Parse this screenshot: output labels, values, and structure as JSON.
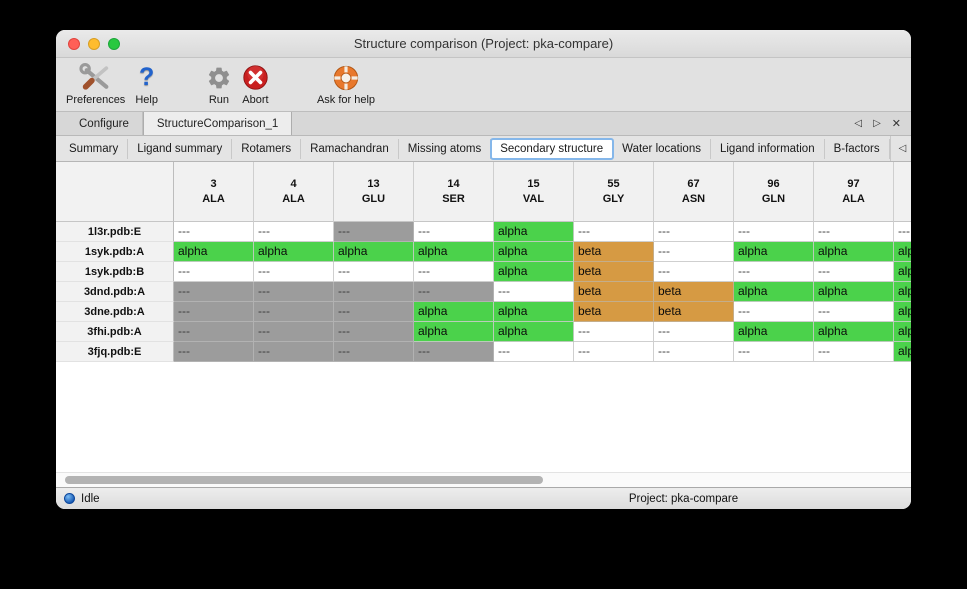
{
  "window": {
    "title": "Structure comparison (Project: pka-compare)"
  },
  "toolbar": {
    "items": [
      {
        "label": "Preferences",
        "icon": "tools-icon"
      },
      {
        "label": "Help",
        "icon": "question-mark-icon"
      },
      {
        "label": "Run",
        "icon": "gear-icon"
      },
      {
        "label": "Abort",
        "icon": "abort-icon"
      },
      {
        "label": "Ask for help",
        "icon": "life-ring-icon"
      }
    ]
  },
  "tabs": {
    "items": [
      {
        "label": "Configure",
        "active": false
      },
      {
        "label": "StructureComparison_1",
        "active": true
      }
    ]
  },
  "subtabs": {
    "items": [
      "Summary",
      "Ligand summary",
      "Rotamers",
      "Ramachandran",
      "Missing atoms",
      "Secondary structure",
      "Water locations",
      "Ligand information",
      "B-factors"
    ],
    "active": "Secondary structure"
  },
  "table": {
    "columns": [
      {
        "number": "3",
        "residue": "ALA"
      },
      {
        "number": "4",
        "residue": "ALA"
      },
      {
        "number": "13",
        "residue": "GLU"
      },
      {
        "number": "14",
        "residue": "SER"
      },
      {
        "number": "15",
        "residue": "VAL"
      },
      {
        "number": "55",
        "residue": "GLY"
      },
      {
        "number": "67",
        "residue": "ASN"
      },
      {
        "number": "96",
        "residue": "GLN"
      },
      {
        "number": "97",
        "residue": "ALA"
      },
      {
        "number": "",
        "residue": ""
      }
    ],
    "rows": [
      {
        "label": "1l3r.pdb:E",
        "cells": [
          {
            "text": "---",
            "style": "plain"
          },
          {
            "text": "---",
            "style": "plain"
          },
          {
            "text": "---",
            "style": "gray"
          },
          {
            "text": "---",
            "style": "plain"
          },
          {
            "text": "alpha",
            "style": "alpha"
          },
          {
            "text": "---",
            "style": "plain"
          },
          {
            "text": "---",
            "style": "plain"
          },
          {
            "text": "---",
            "style": "plain"
          },
          {
            "text": "---",
            "style": "plain"
          },
          {
            "text": "---",
            "style": "plain"
          }
        ]
      },
      {
        "label": "1syk.pdb:A",
        "cells": [
          {
            "text": "alpha",
            "style": "alpha"
          },
          {
            "text": "alpha",
            "style": "alpha"
          },
          {
            "text": "alpha",
            "style": "alpha"
          },
          {
            "text": "alpha",
            "style": "alpha"
          },
          {
            "text": "alpha",
            "style": "alpha"
          },
          {
            "text": "beta",
            "style": "beta"
          },
          {
            "text": "---",
            "style": "plain"
          },
          {
            "text": "alpha",
            "style": "alpha"
          },
          {
            "text": "alpha",
            "style": "alpha"
          },
          {
            "text": "alpha",
            "style": "alpha"
          }
        ]
      },
      {
        "label": "1syk.pdb:B",
        "cells": [
          {
            "text": "---",
            "style": "plain"
          },
          {
            "text": "---",
            "style": "plain"
          },
          {
            "text": "---",
            "style": "plain"
          },
          {
            "text": "---",
            "style": "plain"
          },
          {
            "text": "alpha",
            "style": "alpha"
          },
          {
            "text": "beta",
            "style": "beta"
          },
          {
            "text": "---",
            "style": "plain"
          },
          {
            "text": "---",
            "style": "plain"
          },
          {
            "text": "---",
            "style": "plain"
          },
          {
            "text": "alpha",
            "style": "alpha"
          }
        ]
      },
      {
        "label": "3dnd.pdb:A",
        "cells": [
          {
            "text": "---",
            "style": "gray"
          },
          {
            "text": "---",
            "style": "gray"
          },
          {
            "text": "---",
            "style": "gray"
          },
          {
            "text": "---",
            "style": "gray"
          },
          {
            "text": "---",
            "style": "plain"
          },
          {
            "text": "beta",
            "style": "beta"
          },
          {
            "text": "beta",
            "style": "beta"
          },
          {
            "text": "alpha",
            "style": "alpha"
          },
          {
            "text": "alpha",
            "style": "alpha"
          },
          {
            "text": "alpha",
            "style": "alpha"
          }
        ]
      },
      {
        "label": "3dne.pdb:A",
        "cells": [
          {
            "text": "---",
            "style": "gray"
          },
          {
            "text": "---",
            "style": "gray"
          },
          {
            "text": "---",
            "style": "gray"
          },
          {
            "text": "alpha",
            "style": "alpha"
          },
          {
            "text": "alpha",
            "style": "alpha"
          },
          {
            "text": "beta",
            "style": "beta"
          },
          {
            "text": "beta",
            "style": "beta"
          },
          {
            "text": "---",
            "style": "plain"
          },
          {
            "text": "---",
            "style": "plain"
          },
          {
            "text": "alpha",
            "style": "alpha"
          }
        ]
      },
      {
        "label": "3fhi.pdb:A",
        "cells": [
          {
            "text": "---",
            "style": "gray"
          },
          {
            "text": "---",
            "style": "gray"
          },
          {
            "text": "---",
            "style": "gray"
          },
          {
            "text": "alpha",
            "style": "alpha"
          },
          {
            "text": "alpha",
            "style": "alpha"
          },
          {
            "text": "---",
            "style": "plain"
          },
          {
            "text": "---",
            "style": "plain"
          },
          {
            "text": "alpha",
            "style": "alpha"
          },
          {
            "text": "alpha",
            "style": "alpha"
          },
          {
            "text": "alpha",
            "style": "alpha"
          }
        ]
      },
      {
        "label": "3fjq.pdb:E",
        "cells": [
          {
            "text": "---",
            "style": "gray"
          },
          {
            "text": "---",
            "style": "gray"
          },
          {
            "text": "---",
            "style": "gray"
          },
          {
            "text": "---",
            "style": "gray"
          },
          {
            "text": "---",
            "style": "plain"
          },
          {
            "text": "---",
            "style": "plain"
          },
          {
            "text": "---",
            "style": "plain"
          },
          {
            "text": "---",
            "style": "plain"
          },
          {
            "text": "---",
            "style": "plain"
          },
          {
            "text": "alpha",
            "style": "alpha"
          }
        ]
      }
    ]
  },
  "scrollbar": {
    "thumb_left_pct": 1,
    "thumb_width_pct": 56
  },
  "statusbar": {
    "status": "Idle",
    "project": "Project: pka-compare"
  },
  "colors": {
    "alpha": "#4bd24b",
    "beta": "#d69a43",
    "gray_cell": "#9c9c9c"
  }
}
